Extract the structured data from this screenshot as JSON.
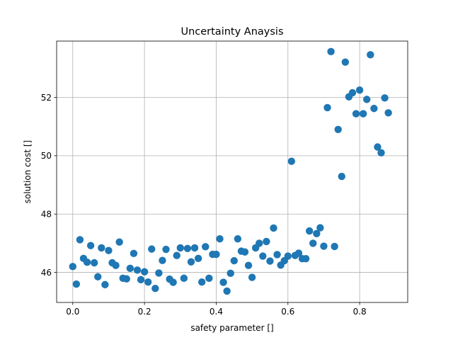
{
  "chart_data": {
    "type": "scatter",
    "title": "Uncertainty Anaysis",
    "xlabel": "safety parameter []",
    "ylabel": "solution cost []",
    "xlim": [
      -0.045,
      0.934
    ],
    "ylim": [
      44.97,
      53.93
    ],
    "xticks": [
      0.0,
      0.2,
      0.4,
      0.6,
      0.8
    ],
    "xtick_labels": [
      "0.0",
      "0.2",
      "0.4",
      "0.6",
      "0.8"
    ],
    "yticks": [
      46,
      48,
      50,
      52
    ],
    "ytick_labels": [
      "46",
      "48",
      "50",
      "52"
    ],
    "grid": true,
    "legend": "none",
    "marker_color": "#1f77b4",
    "points": [
      [
        0.0,
        46.2
      ],
      [
        0.01,
        45.6
      ],
      [
        0.02,
        47.12
      ],
      [
        0.03,
        46.48
      ],
      [
        0.04,
        46.35
      ],
      [
        0.05,
        46.92
      ],
      [
        0.06,
        46.33
      ],
      [
        0.07,
        45.85
      ],
      [
        0.08,
        46.84
      ],
      [
        0.09,
        45.58
      ],
      [
        0.1,
        46.75
      ],
      [
        0.11,
        46.33
      ],
      [
        0.12,
        46.24
      ],
      [
        0.13,
        47.04
      ],
      [
        0.14,
        45.8
      ],
      [
        0.15,
        45.78
      ],
      [
        0.16,
        46.14
      ],
      [
        0.17,
        46.65
      ],
      [
        0.18,
        46.08
      ],
      [
        0.19,
        45.75
      ],
      [
        0.2,
        46.02
      ],
      [
        0.21,
        45.67
      ],
      [
        0.22,
        46.8
      ],
      [
        0.23,
        45.45
      ],
      [
        0.24,
        45.98
      ],
      [
        0.25,
        46.41
      ],
      [
        0.26,
        46.79
      ],
      [
        0.27,
        45.77
      ],
      [
        0.28,
        45.66
      ],
      [
        0.29,
        46.58
      ],
      [
        0.3,
        46.84
      ],
      [
        0.31,
        45.8
      ],
      [
        0.32,
        46.82
      ],
      [
        0.33,
        46.36
      ],
      [
        0.34,
        46.84
      ],
      [
        0.35,
        46.48
      ],
      [
        0.36,
        45.67
      ],
      [
        0.37,
        46.88
      ],
      [
        0.38,
        45.8
      ],
      [
        0.39,
        46.62
      ],
      [
        0.4,
        46.62
      ],
      [
        0.41,
        47.15
      ],
      [
        0.42,
        45.66
      ],
      [
        0.43,
        45.36
      ],
      [
        0.44,
        45.97
      ],
      [
        0.45,
        46.4
      ],
      [
        0.46,
        47.15
      ],
      [
        0.47,
        46.73
      ],
      [
        0.48,
        46.7
      ],
      [
        0.49,
        46.24
      ],
      [
        0.5,
        45.83
      ],
      [
        0.51,
        46.84
      ],
      [
        0.52,
        47.0
      ],
      [
        0.53,
        46.56
      ],
      [
        0.54,
        47.06
      ],
      [
        0.55,
        46.39
      ],
      [
        0.56,
        47.52
      ],
      [
        0.57,
        46.61
      ],
      [
        0.58,
        46.25
      ],
      [
        0.59,
        46.4
      ],
      [
        0.6,
        46.56
      ],
      [
        0.61,
        49.81
      ],
      [
        0.62,
        46.58
      ],
      [
        0.63,
        46.66
      ],
      [
        0.64,
        46.47
      ],
      [
        0.65,
        46.47
      ],
      [
        0.66,
        47.42
      ],
      [
        0.67,
        47.0
      ],
      [
        0.68,
        47.33
      ],
      [
        0.69,
        47.53
      ],
      [
        0.7,
        46.9
      ],
      [
        0.71,
        51.65
      ],
      [
        0.72,
        53.57
      ],
      [
        0.73,
        46.89
      ],
      [
        0.74,
        50.9
      ],
      [
        0.75,
        49.29
      ],
      [
        0.76,
        53.21
      ],
      [
        0.77,
        52.02
      ],
      [
        0.78,
        52.16
      ],
      [
        0.79,
        51.44
      ],
      [
        0.8,
        52.25
      ],
      [
        0.81,
        51.44
      ],
      [
        0.82,
        51.93
      ],
      [
        0.83,
        53.46
      ],
      [
        0.84,
        51.62
      ],
      [
        0.85,
        50.3
      ],
      [
        0.86,
        50.1
      ],
      [
        0.87,
        51.98
      ],
      [
        0.88,
        51.47
      ]
    ]
  }
}
